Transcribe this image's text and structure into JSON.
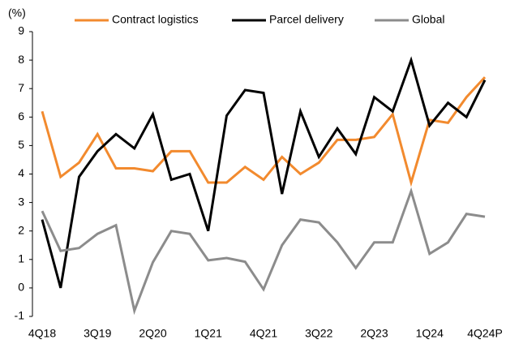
{
  "chart_data": {
    "type": "line",
    "y_label": "(%)",
    "categories": [
      "4Q18",
      null,
      null,
      "3Q19",
      null,
      null,
      "2Q20",
      null,
      null,
      "1Q21",
      null,
      null,
      "4Q21",
      null,
      null,
      "3Q22",
      null,
      null,
      "2Q23",
      null,
      null,
      "1Q24",
      null,
      null,
      "4Q24P"
    ],
    "series": [
      {
        "name": "Contract logistics",
        "color": "#f28a2e",
        "values": [
          6.2,
          3.9,
          4.4,
          5.4,
          4.2,
          4.2,
          4.1,
          4.8,
          4.8,
          3.7,
          3.7,
          4.25,
          3.8,
          4.6,
          4.0,
          4.4,
          5.2,
          5.2,
          5.3,
          6.1,
          3.7,
          5.9,
          5.8,
          6.7,
          7.4
        ]
      },
      {
        "name": "Parcel delivery",
        "color": "#000000",
        "values": [
          2.4,
          0,
          3.9,
          4.8,
          5.4,
          4.9,
          6.1,
          3.8,
          4.0,
          2.0,
          6.05,
          6.95,
          6.85,
          3.3,
          6.2,
          4.6,
          5.6,
          4.7,
          6.7,
          6.2,
          8.0,
          5.7,
          6.5,
          6.0,
          7.3
        ]
      },
      {
        "name": "Global",
        "color": "#8c8c8c",
        "values": [
          2.7,
          1.3,
          1.4,
          1.9,
          2.2,
          -0.8,
          0.9,
          2.0,
          1.9,
          0.97,
          1.05,
          0.92,
          -0.05,
          1.5,
          2.4,
          2.3,
          1.6,
          0.7,
          1.6,
          1.6,
          3.4,
          1.2,
          1.6,
          2.6,
          2.5
        ]
      }
    ],
    "ylim": [
      -1,
      9
    ],
    "yticks": [
      -1,
      0,
      1,
      2,
      3,
      4,
      5,
      6,
      7,
      8,
      9
    ],
    "grid": false,
    "legend": "top"
  }
}
